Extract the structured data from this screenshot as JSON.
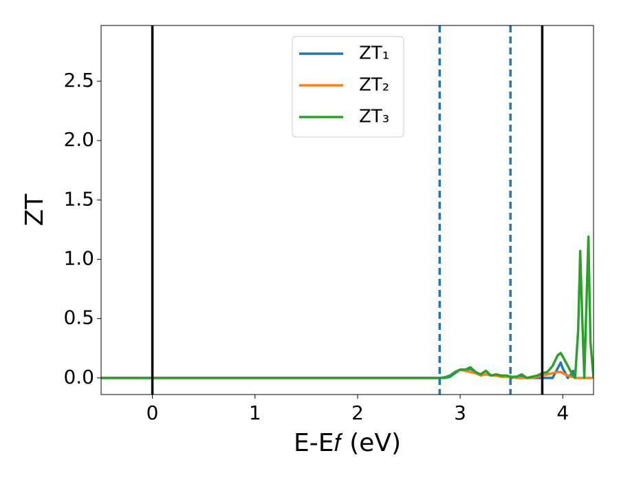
{
  "chart_data": {
    "type": "line",
    "xlabel": "E-E𝑓 (eV)",
    "ylabel": "ZT",
    "xlim": [
      -0.5,
      4.3
    ],
    "ylim": [
      -0.14,
      2.97
    ],
    "xticks": [
      0,
      1,
      2,
      3,
      4
    ],
    "yticks": [
      {
        "value": 0,
        "label": "0.0"
      },
      0.5,
      {
        "value": 1,
        "label": "1.0"
      },
      1.5,
      {
        "value": 2,
        "label": "2.0"
      },
      2.5
    ],
    "legend": "upper center",
    "vlines": [
      {
        "x": 0,
        "color": "#000000",
        "style": "solid"
      },
      {
        "x": 2.8,
        "color": "#1f77b4",
        "style": "dashed"
      },
      {
        "x": 3.49,
        "color": "#1f77b4",
        "style": "dashed"
      },
      {
        "x": 3.8,
        "color": "#000000",
        "style": "solid"
      }
    ],
    "x": [
      -0.5,
      2.7,
      2.8,
      2.85,
      2.9,
      2.95,
      3.0,
      3.05,
      3.1,
      3.15,
      3.2,
      3.25,
      3.3,
      3.35,
      3.4,
      3.45,
      3.5,
      3.55,
      3.6,
      3.65,
      3.7,
      3.75,
      3.8,
      3.85,
      3.9,
      3.95,
      3.98,
      4.0,
      4.05,
      4.08,
      4.1,
      4.12,
      4.15,
      4.17,
      4.19,
      4.21,
      4.23,
      4.25,
      4.27,
      4.3
    ],
    "series": [
      {
        "name": "ZT₁",
        "color": "#1f77b4",
        "values": [
          0,
          0,
          0,
          0,
          0.01,
          0.04,
          0.07,
          0.06,
          0.08,
          0.04,
          0.03,
          0.06,
          0.02,
          0.03,
          0.01,
          0.02,
          0,
          0.01,
          0.02,
          0,
          0,
          0,
          0,
          0,
          0,
          0.08,
          0.13,
          0.08,
          0,
          0.03,
          0.06,
          0,
          null,
          null,
          null,
          null,
          null,
          null,
          null,
          null
        ]
      },
      {
        "name": "ZT₂",
        "color": "#ff7f0e",
        "values": [
          0,
          0,
          0,
          0.005,
          0.02,
          0.05,
          0.07,
          0.06,
          0.05,
          0.04,
          0.02,
          0.03,
          0.02,
          0.02,
          0.01,
          0.01,
          0.01,
          0,
          0,
          0,
          0,
          0.01,
          0.02,
          0.03,
          0.04,
          0.05,
          0.05,
          0.04,
          0.02,
          0.01,
          0.01,
          0,
          0,
          0,
          0,
          0,
          0,
          0,
          0,
          0
        ]
      },
      {
        "name": "ZT₃",
        "color": "#2ca02c",
        "values": [
          0,
          0,
          0,
          0.005,
          0.02,
          0.05,
          0.07,
          0.07,
          0.09,
          0.05,
          0.03,
          0.06,
          0.02,
          0.03,
          0.02,
          0.02,
          0.01,
          0.01,
          0.03,
          0,
          0.01,
          0.02,
          0.04,
          0.05,
          0.1,
          0.19,
          0.21,
          0.18,
          0.1,
          0.05,
          0.02,
          0,
          0.4,
          1.07,
          0.5,
          0,
          0.6,
          1.19,
          0.3,
          0
        ]
      }
    ]
  }
}
